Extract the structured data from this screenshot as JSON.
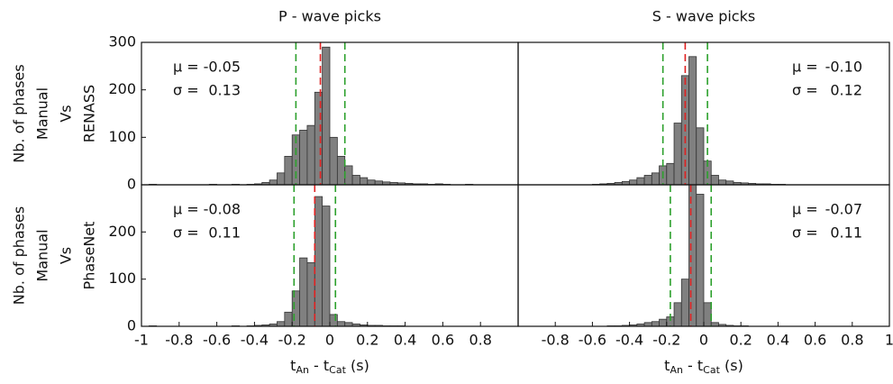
{
  "chart_data": [
    {
      "type": "histogram",
      "title": "P - wave picks",
      "ylabel": [
        "Nb. of phases",
        "Manual",
        "Vs",
        "RENASS"
      ],
      "bins": [
        -1,
        -0.96,
        -0.92,
        -0.88,
        -0.84,
        -0.8,
        -0.76,
        -0.72,
        -0.68,
        -0.64,
        -0.6,
        -0.56,
        -0.52,
        -0.48,
        -0.44,
        -0.4,
        -0.36,
        -0.32,
        -0.28,
        -0.24,
        -0.2,
        -0.16,
        -0.12,
        -0.08,
        -0.04,
        0,
        0.04,
        0.08,
        0.12,
        0.16,
        0.2,
        0.24,
        0.28,
        0.32,
        0.36,
        0.4,
        0.44,
        0.48,
        0.52,
        0.56,
        0.6,
        0.64,
        0.68,
        0.72,
        0.76,
        0.8,
        0.84,
        0.88,
        0.92,
        0.96,
        1
      ],
      "counts": [
        0,
        1,
        0,
        0,
        0,
        0,
        0,
        0,
        0,
        1,
        0,
        0,
        1,
        0,
        1,
        2,
        5,
        10,
        25,
        60,
        105,
        115,
        125,
        195,
        290,
        100,
        60,
        40,
        20,
        15,
        10,
        8,
        6,
        5,
        4,
        3,
        2,
        2,
        1,
        2,
        1,
        0,
        0,
        1,
        0,
        0,
        0,
        0,
        0,
        0
      ],
      "color": "#808080",
      "mu_symbol": "μ =",
      "sigma_symbol": "σ =",
      "mean": -0.05,
      "std": 0.13,
      "stats_corner": "upper left",
      "xlim": [
        -1,
        1
      ],
      "ylim": [
        0,
        300
      ],
      "yticks": [
        0,
        100,
        200,
        300
      ]
    },
    {
      "type": "histogram",
      "title": "S - wave picks",
      "bins": [
        -1,
        -0.96,
        -0.92,
        -0.88,
        -0.84,
        -0.8,
        -0.76,
        -0.72,
        -0.68,
        -0.64,
        -0.6,
        -0.56,
        -0.52,
        -0.48,
        -0.44,
        -0.4,
        -0.36,
        -0.32,
        -0.28,
        -0.24,
        -0.2,
        -0.16,
        -0.12,
        -0.08,
        -0.04,
        0,
        0.04,
        0.08,
        0.12,
        0.16,
        0.2,
        0.24,
        0.28,
        0.32,
        0.36,
        0.4,
        0.44,
        0.48,
        0.52,
        0.56,
        0.6,
        0.64,
        0.68,
        0.72,
        0.76,
        0.8,
        0.84,
        0.88,
        0.92,
        0.96,
        1
      ],
      "counts": [
        0,
        0,
        0,
        0,
        0,
        0,
        0,
        0,
        0,
        0,
        1,
        2,
        3,
        5,
        7,
        10,
        15,
        20,
        25,
        40,
        45,
        130,
        230,
        270,
        120,
        50,
        20,
        10,
        8,
        5,
        4,
        3,
        2,
        2,
        1,
        1,
        0,
        0,
        0,
        0,
        0,
        0,
        0,
        0,
        0,
        0,
        0,
        0,
        0,
        0
      ],
      "color": "#808080",
      "mu_symbol": "μ =",
      "sigma_symbol": "σ =",
      "mean": {
        "value": -0.1,
        "label": "-0.10"
      },
      "std": 0.12,
      "stats_corner": "upper right",
      "xlim": [
        -1,
        1
      ],
      "ylim": [
        0,
        300
      ]
    },
    {
      "type": "histogram",
      "ylabel": [
        "Nb. of phases",
        "Manual",
        "Vs",
        "PhaseNet"
      ],
      "xlabel": [
        "t",
        "An",
        " - t",
        "Cat",
        " (s)"
      ],
      "bins": [
        -1,
        -0.96,
        -0.92,
        -0.88,
        -0.84,
        -0.8,
        -0.76,
        -0.72,
        -0.68,
        -0.64,
        -0.6,
        -0.56,
        -0.52,
        -0.48,
        -0.44,
        -0.4,
        -0.36,
        -0.32,
        -0.28,
        -0.24,
        -0.2,
        -0.16,
        -0.12,
        -0.08,
        -0.04,
        0,
        0.04,
        0.08,
        0.12,
        0.16,
        0.2,
        0.24,
        0.28,
        0.32,
        0.36,
        0.4,
        0.44,
        0.48,
        0.52,
        0.56,
        0.6,
        0.64,
        0.68,
        0.72,
        0.76,
        0.8,
        0.84,
        0.88,
        0.92,
        0.96,
        1
      ],
      "counts": [
        0,
        1,
        0,
        0,
        0,
        0,
        0,
        0,
        0,
        0,
        0,
        0,
        1,
        0,
        1,
        2,
        3,
        5,
        10,
        30,
        75,
        145,
        135,
        275,
        255,
        25,
        10,
        8,
        5,
        3,
        2,
        2,
        1,
        1,
        1,
        0,
        0,
        0,
        0,
        0,
        0,
        0,
        0,
        0,
        0,
        0,
        0,
        0,
        0,
        0
      ],
      "color": "#808080",
      "mu_symbol": "μ =",
      "sigma_symbol": "σ =",
      "mean": -0.08,
      "std": 0.11,
      "stats_corner": "upper left",
      "xlim": [
        -1,
        1
      ],
      "ylim": [
        0,
        300
      ],
      "yticks": [
        0,
        100,
        200
      ],
      "xticks": [
        -1,
        -0.8,
        -0.6,
        -0.4,
        -0.2,
        0,
        0.2,
        0.4,
        0.6,
        0.8
      ]
    },
    {
      "type": "histogram",
      "xlabel": [
        "t",
        "An",
        " - t",
        "Cat",
        " (s)"
      ],
      "bins": [
        -1,
        -0.96,
        -0.92,
        -0.88,
        -0.84,
        -0.8,
        -0.76,
        -0.72,
        -0.68,
        -0.64,
        -0.6,
        -0.56,
        -0.52,
        -0.48,
        -0.44,
        -0.4,
        -0.36,
        -0.32,
        -0.28,
        -0.24,
        -0.2,
        -0.16,
        -0.12,
        -0.08,
        -0.04,
        0,
        0.04,
        0.08,
        0.12,
        0.16,
        0.2,
        0.24,
        0.28,
        0.32,
        0.36,
        0.4,
        0.44,
        0.48,
        0.52,
        0.56,
        0.6,
        0.64,
        0.68,
        0.72,
        0.76,
        0.8,
        0.84,
        0.88,
        0.92,
        0.96,
        1
      ],
      "counts": [
        0,
        0,
        0,
        0,
        0,
        0,
        0,
        0,
        0,
        0,
        0,
        0,
        1,
        1,
        2,
        3,
        5,
        8,
        10,
        15,
        20,
        50,
        100,
        300,
        280,
        50,
        8,
        4,
        2,
        1,
        1,
        0,
        0,
        0,
        0,
        0,
        0,
        0,
        0,
        0,
        0,
        0,
        0,
        0,
        0,
        0,
        0,
        0,
        0,
        0
      ],
      "color": "#808080",
      "mu_symbol": "μ =",
      "sigma_symbol": "σ =",
      "mean": -0.07,
      "std": 0.11,
      "stats_corner": "upper right",
      "xlim": [
        -1,
        1
      ],
      "ylim": [
        0,
        300
      ],
      "xticks": [
        -0.8,
        -0.6,
        -0.4,
        -0.2,
        0,
        0.2,
        0.4,
        0.6,
        0.8,
        1
      ]
    }
  ]
}
